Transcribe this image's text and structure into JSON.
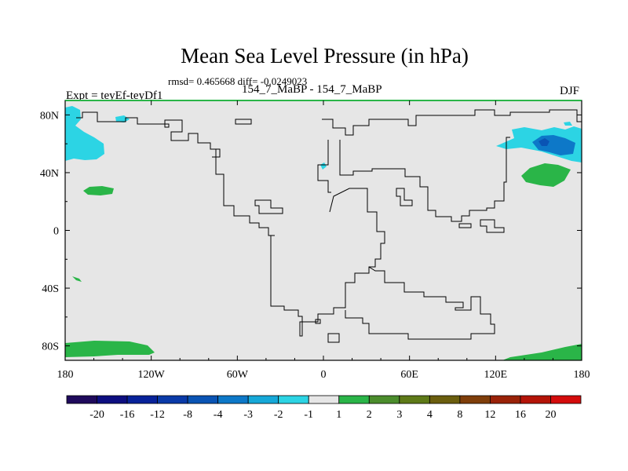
{
  "chart_data": {
    "type": "heatmap",
    "title": "Mean Sea Level Pressure (in hPa)",
    "stats": "rmsd= 0.465668 diff= -0.0249023",
    "subtitle": "154_7_MaBP - 154_7_MaBP",
    "left_label": "Expt = teyEf-teyDf1",
    "right_label": "DJF",
    "x_ticks": [
      "180",
      "120W",
      "60W",
      "0",
      "60E",
      "120E",
      "180"
    ],
    "y_ticks": [
      "80N",
      "40N",
      "0",
      "40S",
      "80S"
    ],
    "xlim": [
      -180,
      180
    ],
    "ylim": [
      -90,
      90
    ],
    "colorbar": {
      "labels": [
        "-20",
        "-16",
        "-12",
        "-8",
        "-4",
        "-3",
        "-2",
        "-1",
        "1",
        "2",
        "3",
        "4",
        "8",
        "12",
        "16",
        "20"
      ],
      "colors": [
        "#1f0a5c",
        "#0d0e80",
        "#08229a",
        "#0a3aa8",
        "#0a54b4",
        "#0d78c8",
        "#16a8d8",
        "#2cd4e4",
        "#e6e6e6",
        "#2ab548",
        "#4b8d2c",
        "#5e7a18",
        "#6b5e0e",
        "#7f3e0a",
        "#9a2208",
        "#b41408",
        "#d40c0c"
      ]
    },
    "background_value_color": "#e6e6e6",
    "anomaly_regions": [
      {
        "label": "1 to 2",
        "color": "#2ab548",
        "desc": "southern polar band"
      },
      {
        "label": "1 to 2",
        "color": "#2ab548",
        "desc": "north pacific west"
      },
      {
        "label": "1 to 2",
        "color": "#2ab548",
        "desc": "east asia"
      },
      {
        "label": "-3 to -1",
        "color": "#2cd4e4",
        "desc": "northeast pacific"
      },
      {
        "label": "-4 to -3",
        "color": "#0d78c8",
        "desc": "northeast siberia"
      }
    ]
  }
}
